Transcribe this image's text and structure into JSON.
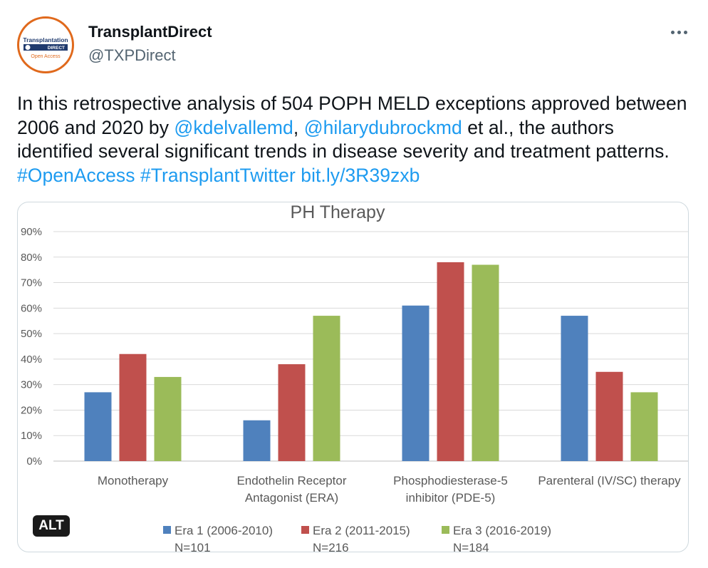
{
  "author": {
    "display_name": "TransplantDirect",
    "handle": "@TXPDirect",
    "avatar": {
      "logo_word": "Transplantation",
      "logo_sub": "DIRECT",
      "logo_tag": "Open Access"
    }
  },
  "more_icon": "more-dots-icon",
  "tweet": {
    "text_1": "In this retrospective analysis of 504 POPH MELD exceptions approved between 2006 and 2020 by ",
    "mention_1": "@kdelvallemd",
    "sep_1": ", ",
    "mention_2": "@hilarydubrockmd",
    "text_2": " et al., the authors identified several significant trends in disease severity and treatment patterns. ",
    "hashtag_1": "#OpenAccess",
    "space_1": " ",
    "hashtag_2": "#TransplantTwitter",
    "space_2": " ",
    "link": "bit.ly/3R39zxb"
  },
  "alt_label": "ALT",
  "colors": {
    "accent": "#1d9bf0",
    "era1": "#4f81bd",
    "era2": "#c0504d",
    "era3": "#9bbb59"
  },
  "chart_data": {
    "type": "bar",
    "title": "PH Therapy",
    "xlabel": "",
    "ylabel": "",
    "ylim": [
      0,
      90
    ],
    "ytick_labels": [
      "0%",
      "10%",
      "20%",
      "30%",
      "40%",
      "50%",
      "60%",
      "70%",
      "80%",
      "90%"
    ],
    "grid": true,
    "legend_position": "bottom",
    "categories": [
      [
        "Monotherapy"
      ],
      [
        "Endothelin Receptor",
        "Antagonist (ERA)"
      ],
      [
        "Phosphodiesterase-5",
        "inhibitor (PDE-5)"
      ],
      [
        "Parenteral (IV/SC) therapy"
      ]
    ],
    "series": [
      {
        "name": "Era 1 (2006-2010)",
        "sub": "N=101",
        "color": "#4f81bd",
        "values": [
          27,
          16,
          61,
          57
        ]
      },
      {
        "name": "Era 2 (2011-2015)",
        "sub": "N=216",
        "color": "#c0504d",
        "values": [
          42,
          38,
          78,
          35
        ]
      },
      {
        "name": "Era 3 (2016-2019)",
        "sub": "N=184",
        "color": "#9bbb59",
        "values": [
          33,
          57,
          77,
          27
        ]
      }
    ]
  }
}
